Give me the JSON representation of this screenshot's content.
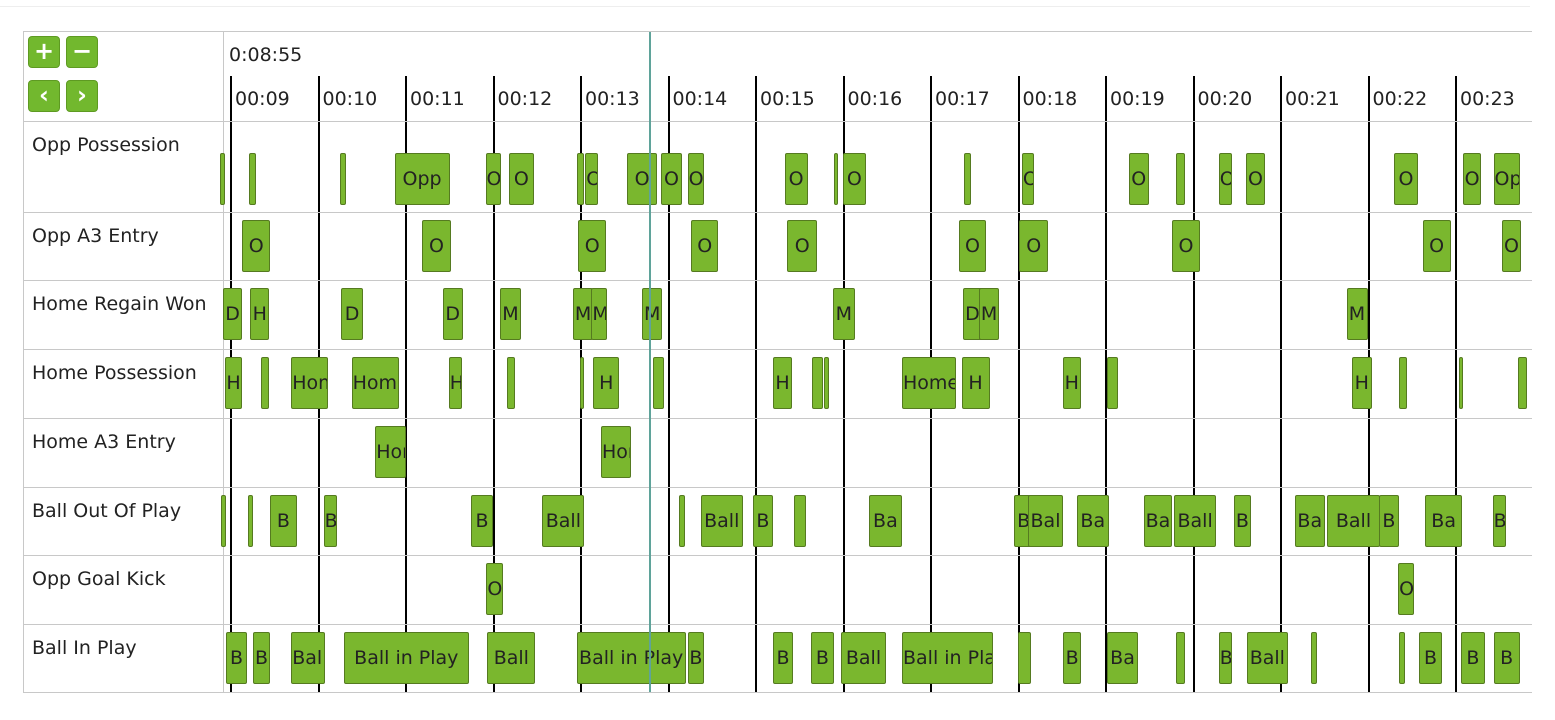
{
  "controls": {
    "zoom_in": "+",
    "zoom_out": "−",
    "prev": "‹",
    "next": "›",
    "zoom_in_icon": "plus-icon",
    "zoom_out_icon": "minus-icon",
    "prev_icon": "chevron-left-icon",
    "next_icon": "chevron-right-icon"
  },
  "timeline": {
    "current_time": "0:08:55",
    "start_seconds": 8.92,
    "seconds_per_tick": 1,
    "ticks": [
      "00:09",
      "00:10",
      "00:11",
      "00:12",
      "00:13",
      "00:14",
      "00:15",
      "00:16",
      "00:17",
      "00:18",
      "00:19",
      "00:20",
      "00:21",
      "00:22",
      "00:23"
    ],
    "playhead_seconds": 13.8,
    "colors": {
      "event": "#7ab72e",
      "playhead": "#5fa39a",
      "button": "#72b82e"
    }
  },
  "rows": [
    {
      "label": "Opp Possession",
      "events": [
        {
          "start": 8.89,
          "end": 8.94,
          "text": ""
        },
        {
          "start": 9.22,
          "end": 9.3,
          "text": ""
        },
        {
          "start": 10.26,
          "end": 10.33,
          "text": ""
        },
        {
          "start": 10.88,
          "end": 11.51,
          "text": "Opp"
        },
        {
          "start": 11.92,
          "end": 12.1,
          "text": "O"
        },
        {
          "start": 12.19,
          "end": 12.47,
          "text": "O"
        },
        {
          "start": 12.97,
          "end": 13.04,
          "text": ""
        },
        {
          "start": 13.06,
          "end": 13.21,
          "text": "O"
        },
        {
          "start": 13.54,
          "end": 13.88,
          "text": "O"
        },
        {
          "start": 13.93,
          "end": 14.16,
          "text": "O"
        },
        {
          "start": 14.23,
          "end": 14.42,
          "text": "O"
        },
        {
          "start": 15.34,
          "end": 15.6,
          "text": "O"
        },
        {
          "start": 15.9,
          "end": 15.95,
          "text": ""
        },
        {
          "start": 16.0,
          "end": 16.27,
          "text": "O"
        },
        {
          "start": 17.39,
          "end": 17.47,
          "text": ""
        },
        {
          "start": 18.05,
          "end": 18.19,
          "text": "O"
        },
        {
          "start": 19.27,
          "end": 19.5,
          "text": "O"
        },
        {
          "start": 19.81,
          "end": 19.91,
          "text": ""
        },
        {
          "start": 20.3,
          "end": 20.45,
          "text": "O"
        },
        {
          "start": 20.61,
          "end": 20.83,
          "text": "O"
        },
        {
          "start": 22.3,
          "end": 22.58,
          "text": "O"
        },
        {
          "start": 23.09,
          "end": 23.3,
          "text": "O"
        },
        {
          "start": 23.44,
          "end": 23.74,
          "text": "Opp"
        }
      ]
    },
    {
      "label": "Opp A3 Entry",
      "events": [
        {
          "start": 9.14,
          "end": 9.46,
          "text": "O"
        },
        {
          "start": 11.19,
          "end": 11.53,
          "text": "O"
        },
        {
          "start": 12.98,
          "end": 13.3,
          "text": "O"
        },
        {
          "start": 14.27,
          "end": 14.58,
          "text": "O"
        },
        {
          "start": 15.37,
          "end": 15.71,
          "text": "O"
        },
        {
          "start": 17.33,
          "end": 17.64,
          "text": "O"
        },
        {
          "start": 18.02,
          "end": 18.35,
          "text": "O"
        },
        {
          "start": 19.77,
          "end": 20.08,
          "text": "O"
        },
        {
          "start": 22.63,
          "end": 22.95,
          "text": "O"
        },
        {
          "start": 23.54,
          "end": 23.75,
          "text": "O"
        }
      ]
    },
    {
      "label": "Home Regain Won",
      "events": [
        {
          "start": 8.92,
          "end": 9.14,
          "text": "D"
        },
        {
          "start": 9.23,
          "end": 9.45,
          "text": "H"
        },
        {
          "start": 10.27,
          "end": 10.52,
          "text": "D"
        },
        {
          "start": 11.43,
          "end": 11.66,
          "text": "D"
        },
        {
          "start": 12.08,
          "end": 12.33,
          "text": "M"
        },
        {
          "start": 12.92,
          "end": 13.15,
          "text": "M"
        },
        {
          "start": 13.13,
          "end": 13.31,
          "text": "M"
        },
        {
          "start": 13.71,
          "end": 13.94,
          "text": "M"
        },
        {
          "start": 15.89,
          "end": 16.14,
          "text": "M"
        },
        {
          "start": 17.38,
          "end": 17.59,
          "text": "D"
        },
        {
          "start": 17.56,
          "end": 17.79,
          "text": "M"
        },
        {
          "start": 21.76,
          "end": 22.0,
          "text": "M"
        }
      ]
    },
    {
      "label": "Home Possession",
      "events": [
        {
          "start": 8.94,
          "end": 9.14,
          "text": "H"
        },
        {
          "start": 9.35,
          "end": 9.45,
          "text": ""
        },
        {
          "start": 9.7,
          "end": 10.12,
          "text": "Hom"
        },
        {
          "start": 10.39,
          "end": 10.93,
          "text": "Home"
        },
        {
          "start": 11.5,
          "end": 11.65,
          "text": "H"
        },
        {
          "start": 12.17,
          "end": 12.26,
          "text": ""
        },
        {
          "start": 13.0,
          "end": 13.05,
          "text": ""
        },
        {
          "start": 13.15,
          "end": 13.45,
          "text": "H"
        },
        {
          "start": 13.83,
          "end": 13.96,
          "text": ""
        },
        {
          "start": 15.21,
          "end": 15.42,
          "text": "H"
        },
        {
          "start": 15.65,
          "end": 15.78,
          "text": ""
        },
        {
          "start": 15.79,
          "end": 15.84,
          "text": ""
        },
        {
          "start": 16.68,
          "end": 17.3,
          "text": "Home"
        },
        {
          "start": 17.36,
          "end": 17.68,
          "text": "H"
        },
        {
          "start": 18.52,
          "end": 18.72,
          "text": "H"
        },
        {
          "start": 19.02,
          "end": 19.15,
          "text": ""
        },
        {
          "start": 21.82,
          "end": 22.05,
          "text": "H"
        },
        {
          "start": 22.36,
          "end": 22.45,
          "text": ""
        },
        {
          "start": 23.04,
          "end": 23.09,
          "text": ""
        },
        {
          "start": 23.72,
          "end": 23.82,
          "text": ""
        }
      ]
    },
    {
      "label": "Home A3 Entry",
      "events": [
        {
          "start": 10.66,
          "end": 11.01,
          "text": "Hom"
        },
        {
          "start": 13.24,
          "end": 13.58,
          "text": "Hom"
        }
      ]
    },
    {
      "label": "Ball Out Of Play",
      "events": [
        {
          "start": 8.9,
          "end": 8.95,
          "text": ""
        },
        {
          "start": 9.2,
          "end": 9.26,
          "text": ""
        },
        {
          "start": 9.46,
          "end": 9.76,
          "text": "B"
        },
        {
          "start": 10.07,
          "end": 10.22,
          "text": "B"
        },
        {
          "start": 11.75,
          "end": 12.01,
          "text": "B"
        },
        {
          "start": 12.57,
          "end": 13.05,
          "text": "Ball"
        },
        {
          "start": 14.13,
          "end": 14.2,
          "text": ""
        },
        {
          "start": 14.38,
          "end": 14.86,
          "text": "Ball"
        },
        {
          "start": 14.98,
          "end": 15.2,
          "text": "B"
        },
        {
          "start": 15.44,
          "end": 15.58,
          "text": ""
        },
        {
          "start": 16.3,
          "end": 16.68,
          "text": "Ba"
        },
        {
          "start": 17.96,
          "end": 18.18,
          "text": "B"
        },
        {
          "start": 18.12,
          "end": 18.52,
          "text": "Bal"
        },
        {
          "start": 18.68,
          "end": 19.04,
          "text": "Ba"
        },
        {
          "start": 19.45,
          "end": 19.76,
          "text": "Ba"
        },
        {
          "start": 19.79,
          "end": 20.27,
          "text": "Ball"
        },
        {
          "start": 20.47,
          "end": 20.67,
          "text": "B"
        },
        {
          "start": 21.17,
          "end": 21.51,
          "text": "Ba"
        },
        {
          "start": 21.54,
          "end": 22.14,
          "text": "Ball"
        },
        {
          "start": 22.13,
          "end": 22.36,
          "text": "B"
        },
        {
          "start": 22.66,
          "end": 23.08,
          "text": "Ba"
        },
        {
          "start": 23.43,
          "end": 23.58,
          "text": "B"
        }
      ]
    },
    {
      "label": "Opp Goal Kick",
      "events": [
        {
          "start": 11.93,
          "end": 12.12,
          "text": "O"
        },
        {
          "start": 22.35,
          "end": 22.53,
          "text": "O"
        }
      ]
    },
    {
      "label": "Ball In Play",
      "events": [
        {
          "start": 8.95,
          "end": 9.2,
          "text": "B"
        },
        {
          "start": 9.26,
          "end": 9.46,
          "text": "B"
        },
        {
          "start": 9.7,
          "end": 10.08,
          "text": "Ball"
        },
        {
          "start": 10.3,
          "end": 11.73,
          "text": "Ball in Play"
        },
        {
          "start": 11.94,
          "end": 12.49,
          "text": "Ball"
        },
        {
          "start": 12.96,
          "end": 14.21,
          "text": "Ball in Play"
        },
        {
          "start": 14.23,
          "end": 14.42,
          "text": "B"
        },
        {
          "start": 15.21,
          "end": 15.43,
          "text": "B"
        },
        {
          "start": 15.64,
          "end": 15.9,
          "text": "B"
        },
        {
          "start": 15.98,
          "end": 16.5,
          "text": "Ball"
        },
        {
          "start": 16.68,
          "end": 17.72,
          "text": "Ball in Play"
        },
        {
          "start": 18.01,
          "end": 18.15,
          "text": ""
        },
        {
          "start": 18.52,
          "end": 18.73,
          "text": "B"
        },
        {
          "start": 19.02,
          "end": 19.38,
          "text": "Ba"
        },
        {
          "start": 19.81,
          "end": 19.91,
          "text": ""
        },
        {
          "start": 20.3,
          "end": 20.45,
          "text": "B"
        },
        {
          "start": 20.62,
          "end": 21.09,
          "text": "Ball"
        },
        {
          "start": 21.35,
          "end": 21.42,
          "text": ""
        },
        {
          "start": 22.36,
          "end": 22.43,
          "text": ""
        },
        {
          "start": 22.59,
          "end": 22.85,
          "text": "B"
        },
        {
          "start": 23.07,
          "end": 23.34,
          "text": "B"
        },
        {
          "start": 23.44,
          "end": 23.74,
          "text": "B"
        }
      ]
    }
  ]
}
